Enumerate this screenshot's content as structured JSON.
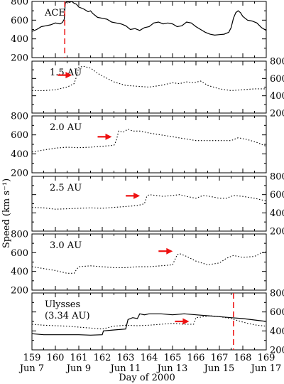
{
  "chart_data": {
    "type": "line",
    "ylabel": "Speed (km s⁻¹)",
    "xlabel": "Day of 2000",
    "xlim": [
      159,
      169
    ],
    "ylim": [
      200,
      800
    ],
    "x_ticks": [
      "159",
      "160",
      "161",
      "162",
      "163",
      "164",
      "165",
      "166",
      "167",
      "168",
      "169"
    ],
    "date_ticks": [
      {
        "day": 159,
        "label": "Jun 7"
      },
      {
        "day": 161,
        "label": "Jun 9"
      },
      {
        "day": 163,
        "label": "Jun 11"
      },
      {
        "day": 165,
        "label": "Jun 13"
      },
      {
        "day": 167,
        "label": "Jun 15"
      },
      {
        "day": 169,
        "label": "Jun 17"
      }
    ],
    "y_ticks": [
      200,
      400,
      600,
      800
    ],
    "colors": {
      "event_line": "#ee2222",
      "arrow": "#ee1111",
      "line": "#000000"
    },
    "panels": [
      {
        "label": "ACE",
        "label_lines": [
          "ACE"
        ],
        "axis_side": "left",
        "event_line_day": 160.4,
        "series": [
          {
            "style": "solid",
            "points": [
              [
                159.0,
                480
              ],
              [
                159.2,
                500
              ],
              [
                159.4,
                530
              ],
              [
                159.6,
                540
              ],
              [
                159.8,
                550
              ],
              [
                160.0,
                570
              ],
              [
                160.2,
                560
              ],
              [
                160.3,
                575
              ],
              [
                160.38,
                610
              ],
              [
                160.42,
                780
              ],
              [
                160.5,
                800
              ],
              [
                160.6,
                790
              ],
              [
                160.7,
                800
              ],
              [
                160.8,
                780
              ],
              [
                160.9,
                770
              ],
              [
                161.0,
                740
              ],
              [
                161.2,
                720
              ],
              [
                161.4,
                690
              ],
              [
                161.5,
                700
              ],
              [
                161.6,
                670
              ],
              [
                161.8,
                630
              ],
              [
                162.0,
                620
              ],
              [
                162.2,
                610
              ],
              [
                162.4,
                580
              ],
              [
                162.6,
                570
              ],
              [
                162.8,
                560
              ],
              [
                163.0,
                540
              ],
              [
                163.2,
                500
              ],
              [
                163.4,
                510
              ],
              [
                163.6,
                490
              ],
              [
                163.8,
                520
              ],
              [
                164.0,
                530
              ],
              [
                164.2,
                570
              ],
              [
                164.4,
                580
              ],
              [
                164.6,
                560
              ],
              [
                164.8,
                570
              ],
              [
                165.0,
                560
              ],
              [
                165.2,
                530
              ],
              [
                165.4,
                540
              ],
              [
                165.6,
                580
              ],
              [
                165.8,
                570
              ],
              [
                166.0,
                530
              ],
              [
                166.2,
                500
              ],
              [
                166.4,
                470
              ],
              [
                166.6,
                450
              ],
              [
                166.8,
                440
              ],
              [
                167.0,
                445
              ],
              [
                167.2,
                450
              ],
              [
                167.4,
                470
              ],
              [
                167.5,
                520
              ],
              [
                167.6,
                620
              ],
              [
                167.7,
                680
              ],
              [
                167.8,
                700
              ],
              [
                167.9,
                680
              ],
              [
                168.0,
                640
              ],
              [
                168.2,
                600
              ],
              [
                168.4,
                590
              ],
              [
                168.6,
                570
              ],
              [
                168.8,
                520
              ],
              [
                169.0,
                490
              ]
            ]
          }
        ]
      },
      {
        "label": "1.5 AU",
        "label_lines": [
          "1.5 AU"
        ],
        "axis_side": "right",
        "arrow_day": 160.8,
        "series": [
          {
            "style": "dotted",
            "points": [
              [
                159.0,
                460
              ],
              [
                159.5,
                460
              ],
              [
                160.0,
                470
              ],
              [
                160.5,
                500
              ],
              [
                160.8,
                540
              ],
              [
                160.9,
                620
              ],
              [
                161.0,
                730
              ],
              [
                161.2,
                740
              ],
              [
                161.5,
                720
              ],
              [
                161.8,
                660
              ],
              [
                162.0,
                630
              ],
              [
                162.5,
                560
              ],
              [
                163.0,
                520
              ],
              [
                163.5,
                510
              ],
              [
                164.0,
                500
              ],
              [
                164.5,
                520
              ],
              [
                165.0,
                550
              ],
              [
                165.3,
                540
              ],
              [
                165.6,
                560
              ],
              [
                165.9,
                550
              ],
              [
                166.2,
                570
              ],
              [
                166.5,
                520
              ],
              [
                167.0,
                480
              ],
              [
                167.5,
                460
              ],
              [
                168.0,
                470
              ],
              [
                168.5,
                480
              ],
              [
                169.0,
                480
              ]
            ]
          }
        ]
      },
      {
        "label": "2.0 AU",
        "label_lines": [
          "2.0 AU"
        ],
        "axis_side": "left",
        "arrow_day": 162.5,
        "series": [
          {
            "style": "dotted",
            "points": [
              [
                159.0,
                420
              ],
              [
                159.5,
                440
              ],
              [
                160.0,
                460
              ],
              [
                160.5,
                470
              ],
              [
                161.0,
                465
              ],
              [
                161.5,
                470
              ],
              [
                162.0,
                480
              ],
              [
                162.5,
                490
              ],
              [
                162.6,
                540
              ],
              [
                162.7,
                640
              ],
              [
                162.9,
                630
              ],
              [
                163.1,
                660
              ],
              [
                163.3,
                640
              ],
              [
                163.6,
                640
              ],
              [
                164.0,
                620
              ],
              [
                164.5,
                600
              ],
              [
                165.0,
                580
              ],
              [
                165.5,
                560
              ],
              [
                166.0,
                540
              ],
              [
                166.5,
                540
              ],
              [
                167.0,
                540
              ],
              [
                167.5,
                540
              ],
              [
                167.8,
                570
              ],
              [
                168.2,
                550
              ],
              [
                168.6,
                520
              ],
              [
                169.0,
                480
              ]
            ]
          }
        ]
      },
      {
        "label": "2.5 AU",
        "label_lines": [
          "2.5 AU"
        ],
        "axis_side": "right",
        "arrow_day": 163.7,
        "series": [
          {
            "style": "dotted",
            "points": [
              [
                159.0,
                460
              ],
              [
                159.5,
                455
              ],
              [
                160.0,
                440
              ],
              [
                160.5,
                445
              ],
              [
                161.0,
                450
              ],
              [
                161.5,
                455
              ],
              [
                162.0,
                450
              ],
              [
                162.5,
                460
              ],
              [
                163.0,
                470
              ],
              [
                163.5,
                480
              ],
              [
                163.8,
                500
              ],
              [
                163.9,
                580
              ],
              [
                164.0,
                600
              ],
              [
                164.3,
                590
              ],
              [
                164.6,
                580
              ],
              [
                165.0,
                590
              ],
              [
                165.3,
                600
              ],
              [
                165.6,
                580
              ],
              [
                166.0,
                560
              ],
              [
                166.3,
                590
              ],
              [
                166.6,
                580
              ],
              [
                167.0,
                560
              ],
              [
                167.3,
                560
              ],
              [
                167.6,
                590
              ],
              [
                168.0,
                580
              ],
              [
                168.5,
                560
              ],
              [
                169.0,
                530
              ]
            ]
          }
        ]
      },
      {
        "label": "3.0 AU",
        "label_lines": [
          "3.0 AU"
        ],
        "axis_side": "left",
        "arrow_day": 165.1,
        "series": [
          {
            "style": "dotted",
            "points": [
              [
                159.0,
                450
              ],
              [
                159.5,
                430
              ],
              [
                160.0,
                410
              ],
              [
                160.5,
                380
              ],
              [
                160.8,
                380
              ],
              [
                160.9,
                420
              ],
              [
                161.0,
                450
              ],
              [
                161.5,
                460
              ],
              [
                162.0,
                450
              ],
              [
                162.5,
                440
              ],
              [
                163.0,
                440
              ],
              [
                163.5,
                450
              ],
              [
                164.0,
                450
              ],
              [
                164.5,
                460
              ],
              [
                165.0,
                470
              ],
              [
                165.2,
                580
              ],
              [
                165.3,
                590
              ],
              [
                165.6,
                560
              ],
              [
                166.0,
                510
              ],
              [
                166.5,
                470
              ],
              [
                167.0,
                490
              ],
              [
                167.3,
                540
              ],
              [
                167.6,
                570
              ],
              [
                168.0,
                550
              ],
              [
                168.5,
                560
              ],
              [
                168.8,
                600
              ],
              [
                169.0,
                610
              ]
            ]
          }
        ]
      },
      {
        "label": "Ulysses (3.34 AU)",
        "label_lines": [
          "Ulysses",
          "(3.34 AU)"
        ],
        "axis_side": "right",
        "arrow_day": 165.8,
        "event_line_day": 167.6,
        "series": [
          {
            "style": "solid",
            "points": [
              [
                159.0,
                370
              ],
              [
                159.5,
                360
              ],
              [
                160.0,
                360
              ],
              [
                160.5,
                360
              ],
              [
                161.0,
                360
              ],
              [
                161.5,
                355
              ],
              [
                162.0,
                360
              ],
              [
                162.05,
                400
              ],
              [
                162.5,
                410
              ],
              [
                163.0,
                420
              ],
              [
                163.1,
                520
              ],
              [
                163.3,
                540
              ],
              [
                163.5,
                530
              ],
              [
                163.6,
                580
              ],
              [
                163.8,
                570
              ],
              [
                164.0,
                580
              ],
              [
                164.5,
                580
              ],
              [
                165.0,
                570
              ],
              [
                165.5,
                580
              ],
              [
                166.0,
                570
              ],
              [
                166.5,
                560
              ],
              [
                167.0,
                550
              ],
              [
                167.5,
                540
              ],
              [
                168.0,
                530
              ],
              [
                168.5,
                515
              ],
              [
                169.0,
                500
              ]
            ]
          },
          {
            "style": "dotted",
            "points": [
              [
                159.0,
                470
              ],
              [
                159.5,
                460
              ],
              [
                160.0,
                455
              ],
              [
                160.5,
                450
              ],
              [
                161.0,
                440
              ],
              [
                161.5,
                430
              ],
              [
                162.0,
                420
              ],
              [
                162.5,
                450
              ],
              [
                163.0,
                460
              ],
              [
                163.5,
                455
              ],
              [
                164.0,
                460
              ],
              [
                164.5,
                470
              ],
              [
                165.0,
                480
              ],
              [
                165.5,
                470
              ],
              [
                165.9,
                470
              ],
              [
                166.0,
                540
              ],
              [
                166.2,
                545
              ],
              [
                166.6,
                560
              ],
              [
                167.0,
                550
              ],
              [
                167.5,
                530
              ],
              [
                167.9,
                500
              ],
              [
                168.2,
                480
              ],
              [
                168.6,
                460
              ],
              [
                169.0,
                450
              ]
            ]
          }
        ]
      }
    ]
  }
}
